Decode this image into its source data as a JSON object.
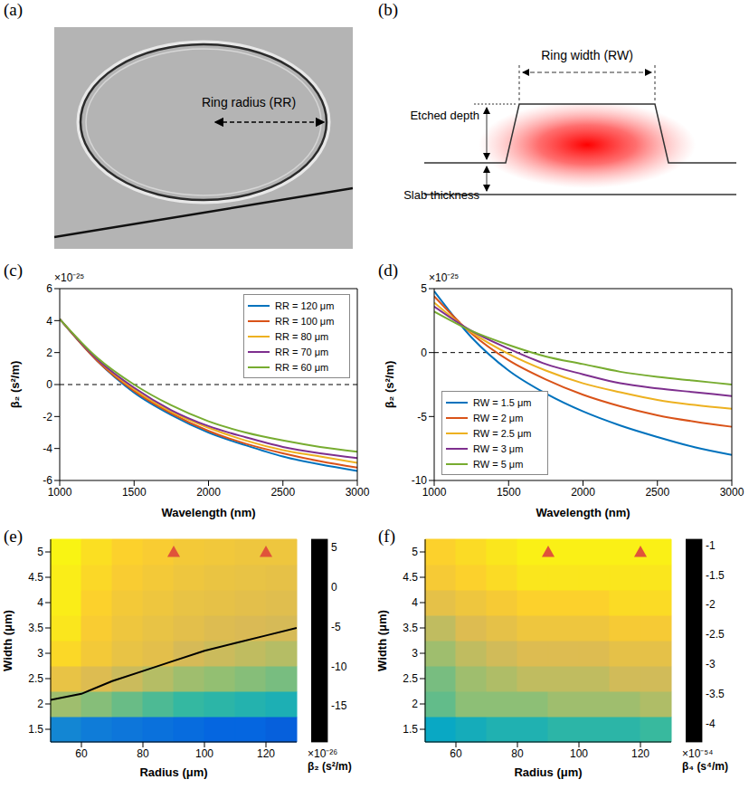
{
  "panels": {
    "a": {
      "label": "(a)",
      "annotation": "Ring radius (RR)"
    },
    "b": {
      "label": "(b)",
      "ring_width": "Ring width (RW)",
      "etched_depth": "Etched depth",
      "slab_thickness": "Slab thickness"
    }
  },
  "chart_data": [
    {
      "label": "(c)",
      "type": "line",
      "x_label": "Wavelength (nm)",
      "y_label": "β₂ (s²/m)",
      "y_multiplier": "×10⁻²⁵",
      "x": [
        1000,
        1250,
        1500,
        1750,
        2000,
        2250,
        2500,
        2750,
        3000
      ],
      "xlim": [
        1000,
        3000
      ],
      "xticks": [
        1000,
        1500,
        2000,
        2500,
        3000
      ],
      "ylim": [
        -6,
        6
      ],
      "yticks": [
        -6,
        -4,
        -2,
        0,
        2,
        4,
        6
      ],
      "reference_line": 0,
      "legend": "top-right",
      "series": [
        {
          "name": "RR = 120 μm",
          "color": "#0072BD",
          "values": [
            4.1,
            1.5,
            -0.5,
            -1.9,
            -3.0,
            -3.8,
            -4.5,
            -5.0,
            -5.4
          ]
        },
        {
          "name": "RR = 100 μm",
          "color": "#D95319",
          "values": [
            4.1,
            1.5,
            -0.4,
            -1.8,
            -2.9,
            -3.7,
            -4.3,
            -4.8,
            -5.2
          ]
        },
        {
          "name": "RR = 80 μm",
          "color": "#EDB120",
          "values": [
            4.1,
            1.6,
            -0.3,
            -1.7,
            -2.7,
            -3.5,
            -4.1,
            -4.5,
            -4.9
          ]
        },
        {
          "name": "RR = 70 μm",
          "color": "#7E2F8E",
          "values": [
            4.1,
            1.6,
            -0.2,
            -1.6,
            -2.6,
            -3.3,
            -3.9,
            -4.3,
            -4.6
          ]
        },
        {
          "name": "RR = 60 μm",
          "color": "#77AC30",
          "values": [
            4.1,
            1.7,
            0.0,
            -1.3,
            -2.3,
            -3.0,
            -3.5,
            -3.9,
            -4.2
          ]
        }
      ]
    },
    {
      "label": "(d)",
      "type": "line",
      "x_label": "Wavelength (nm)",
      "y_label": "β₂ (s²/m)",
      "y_multiplier": "×10⁻²⁵",
      "x": [
        1000,
        1250,
        1500,
        1750,
        2000,
        2250,
        2500,
        2750,
        3000
      ],
      "xlim": [
        1000,
        3000
      ],
      "xticks": [
        1000,
        1500,
        2000,
        2500,
        3000
      ],
      "ylim": [
        -10,
        5
      ],
      "yticks": [
        -10,
        -5,
        0,
        5
      ],
      "reference_line": 0,
      "legend": "bottom-left",
      "series": [
        {
          "name": "RW = 1.5 μm",
          "color": "#0072BD",
          "values": [
            4.8,
            1.2,
            -1.4,
            -3.2,
            -4.6,
            -5.7,
            -6.6,
            -7.4,
            -8.0
          ]
        },
        {
          "name": "RW = 2 μm",
          "color": "#D95319",
          "values": [
            4.4,
            1.5,
            -0.6,
            -2.1,
            -3.3,
            -4.2,
            -4.9,
            -5.4,
            -5.8
          ]
        },
        {
          "name": "RW = 2.5 μm",
          "color": "#EDB120",
          "values": [
            3.9,
            1.6,
            -0.1,
            -1.4,
            -2.4,
            -3.1,
            -3.7,
            -4.1,
            -4.4
          ]
        },
        {
          "name": "RW = 3 μm",
          "color": "#7E2F8E",
          "values": [
            3.6,
            1.7,
            0.3,
            -0.9,
            -1.7,
            -2.4,
            -2.8,
            -3.1,
            -3.4
          ]
        },
        {
          "name": "RW = 5 μm",
          "color": "#77AC30",
          "values": [
            3.2,
            1.7,
            0.6,
            -0.3,
            -0.9,
            -1.5,
            -1.9,
            -2.2,
            -2.5
          ]
        }
      ]
    },
    {
      "label": "(e)",
      "type": "heatmap",
      "x_label": "Radius (μm)",
      "y_label": "Width (μm)",
      "xlim": [
        50,
        130
      ],
      "xticks": [
        60,
        80,
        100,
        120
      ],
      "ylim": [
        1.25,
        5.25
      ],
      "yticks": [
        1.5,
        2,
        2.5,
        3,
        3.5,
        4,
        4.5,
        5
      ],
      "x_edges": [
        50,
        60,
        70,
        80,
        90,
        100,
        110,
        120,
        130
      ],
      "y_edges": [
        1.25,
        1.75,
        2.25,
        2.75,
        3.25,
        3.75,
        4.25,
        4.75,
        5.25
      ],
      "cells": [
        [
          -13,
          -14,
          -14.5,
          -15,
          -15.5,
          -16,
          -16,
          -16.5
        ],
        [
          -3,
          -4,
          -5,
          -6,
          -7,
          -7.5,
          -8,
          -8.5
        ],
        [
          1,
          0,
          -1,
          -2,
          -3,
          -3.5,
          -4,
          -4.5
        ],
        [
          3.5,
          2,
          1,
          0.5,
          -0.5,
          -1,
          -1.5,
          -2
        ],
        [
          4.5,
          2.5,
          1.5,
          1,
          0.5,
          0,
          -0.3,
          -0.5
        ],
        [
          5,
          3,
          2,
          1.5,
          1,
          0.8,
          0.5,
          0.3
        ],
        [
          5,
          3.5,
          2.5,
          2,
          1.5,
          1.2,
          1,
          0.8
        ],
        [
          5.5,
          4,
          3,
          2.5,
          2,
          1.8,
          1.5,
          1.5
        ]
      ],
      "colorbar": {
        "range": [
          -19.5,
          6
        ],
        "ticks": [
          -15,
          -10,
          -5,
          0,
          5
        ],
        "multiplier": "×10⁻²⁶",
        "label": "β₂ (s²/m)"
      },
      "contour": {
        "value": 0,
        "x": [
          50,
          60,
          70,
          80,
          90,
          100,
          110,
          120,
          130
        ],
        "y": [
          2.08,
          2.2,
          2.45,
          2.65,
          2.85,
          3.05,
          3.2,
          3.35,
          3.5
        ]
      },
      "markers": {
        "x": [
          90,
          120
        ],
        "y": [
          5,
          5
        ],
        "color": "#e0533a",
        "marker": "triangle"
      }
    },
    {
      "label": "(f)",
      "type": "heatmap",
      "x_label": "Radius (μm)",
      "y_label": "Width (μm)",
      "xlim": [
        50,
        130
      ],
      "xticks": [
        60,
        80,
        100,
        120
      ],
      "ylim": [
        1.25,
        5.25
      ],
      "yticks": [
        1.5,
        2,
        2.5,
        3,
        3.5,
        4,
        4.5,
        5
      ],
      "x_edges": [
        50,
        60,
        70,
        80,
        90,
        100,
        110,
        120,
        130
      ],
      "y_edges": [
        1.25,
        1.75,
        2.25,
        2.75,
        3.25,
        3.75,
        4.25,
        4.75,
        5.25
      ],
      "cells": [
        [
          -3.0,
          -2.9,
          -2.8,
          -2.8,
          -2.7,
          -2.7,
          -2.7,
          -2.6
        ],
        [
          -2.4,
          -2.2,
          -2.2,
          -2.2,
          -2.1,
          -2.1,
          -2.1,
          -2.0
        ],
        [
          -2.3,
          -2.1,
          -2.0,
          -1.9,
          -1.9,
          -1.9,
          -1.8,
          -1.8
        ],
        [
          -2.1,
          -1.9,
          -1.8,
          -1.7,
          -1.7,
          -1.7,
          -1.6,
          -1.6
        ],
        [
          -1.9,
          -1.7,
          -1.6,
          -1.5,
          -1.5,
          -1.5,
          -1.4,
          -1.4
        ],
        [
          -1.6,
          -1.5,
          -1.4,
          -1.3,
          -1.3,
          -1.3,
          -1.2,
          -1.2
        ],
        [
          -1.4,
          -1.3,
          -1.2,
          -1.1,
          -1.1,
          -1.1,
          -1.1,
          -1.1
        ],
        [
          -1.3,
          -1.2,
          -1.1,
          -1.0,
          -1.0,
          -1.0,
          -1.0,
          -1.0
        ]
      ],
      "colorbar": {
        "range": [
          -4.3,
          -0.9
        ],
        "ticks": [
          -4,
          -3.5,
          -3,
          -2.5,
          -2,
          -1.5,
          -1
        ],
        "multiplier": "×10⁻⁵⁴",
        "label": "β₄ (s⁴/m)"
      },
      "markers": {
        "x": [
          90,
          120
        ],
        "y": [
          5,
          5
        ],
        "color": "#e0533a",
        "marker": "triangle"
      }
    }
  ]
}
